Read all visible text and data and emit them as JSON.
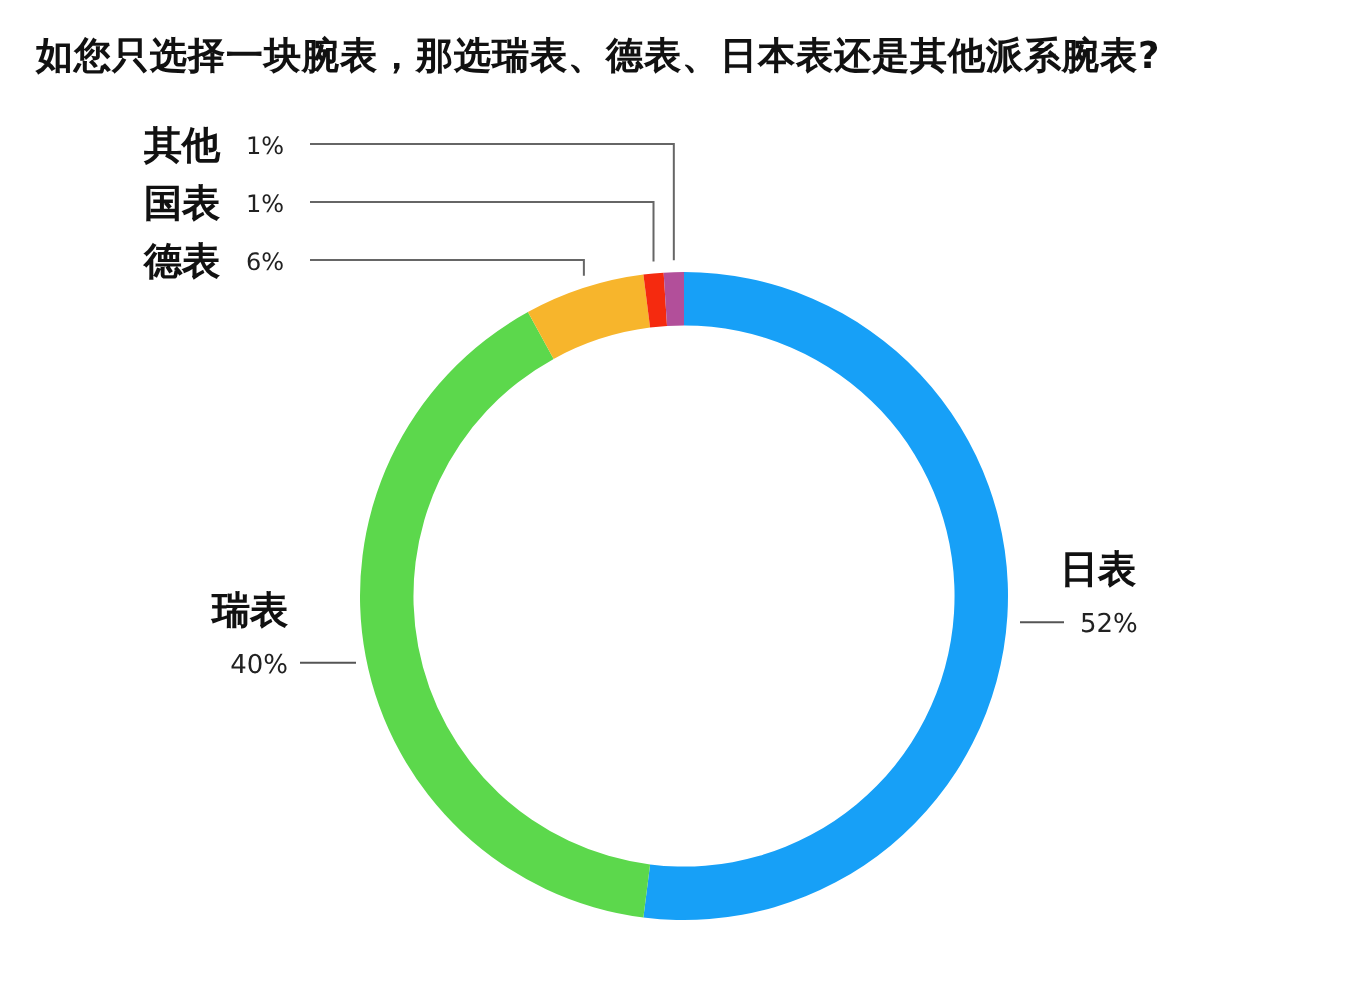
{
  "chart_data": {
    "type": "donut",
    "title": "如您只选择一块腕表，那选瑞表、德表、日本表还是其他派系腕表?",
    "categories": [
      "日表",
      "瑞表",
      "德表",
      "国表",
      "其他"
    ],
    "values": [
      52,
      40,
      6,
      1,
      1
    ],
    "colors": [
      "#17a0f7",
      "#5cd84c",
      "#f7b52c",
      "#f52a0f",
      "#b24f9a"
    ],
    "value_labels": [
      "52%",
      "40%",
      "6%",
      "1%",
      "1%"
    ]
  }
}
